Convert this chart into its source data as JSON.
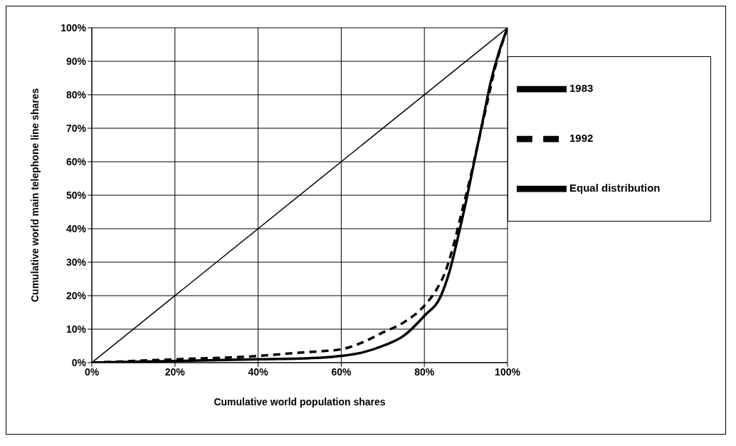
{
  "chart_data": {
    "type": "line",
    "xlabel": "Cumulative world population shares",
    "ylabel": "Cumulative world main telephone line shares",
    "xlim": [
      0,
      100
    ],
    "ylim": [
      0,
      100
    ],
    "xticks": [
      {
        "value": 0,
        "label": "0%"
      },
      {
        "value": 20,
        "label": "20%"
      },
      {
        "value": 40,
        "label": "40%"
      },
      {
        "value": 60,
        "label": "60%"
      },
      {
        "value": 80,
        "label": "80%"
      },
      {
        "value": 100,
        "label": "100%"
      }
    ],
    "yticks": [
      {
        "value": 0,
        "label": "0%"
      },
      {
        "value": 10,
        "label": "10%"
      },
      {
        "value": 20,
        "label": "20%"
      },
      {
        "value": 30,
        "label": "30%"
      },
      {
        "value": 40,
        "label": "40%"
      },
      {
        "value": 50,
        "label": "50%"
      },
      {
        "value": 60,
        "label": "60%"
      },
      {
        "value": 70,
        "label": "70%"
      },
      {
        "value": 80,
        "label": "80%"
      },
      {
        "value": 90,
        "label": "90%"
      },
      {
        "value": 100,
        "label": "100%"
      }
    ],
    "grid": true,
    "legend": "right",
    "marker": "none",
    "series": [
      {
        "name": "1983",
        "color": "#000000",
        "line_style": "solid",
        "x": [
          0,
          20,
          40,
          50,
          60,
          65,
          70,
          75,
          80,
          84,
          86,
          88,
          90,
          92,
          94,
          96,
          98,
          100
        ],
        "values": [
          0,
          0.5,
          1,
          1.2,
          2,
          3,
          5,
          8,
          14,
          20,
          27,
          37,
          48,
          60,
          72,
          84,
          93,
          100
        ]
      },
      {
        "name": "1992",
        "color": "#000000",
        "line_style": "dashed",
        "x": [
          0,
          20,
          40,
          50,
          60,
          65,
          70,
          75,
          80,
          83,
          85,
          87,
          89,
          91,
          93,
          95,
          97,
          100
        ],
        "values": [
          0,
          1,
          2,
          3,
          4,
          6,
          9,
          12,
          17,
          22,
          27,
          35,
          45,
          55,
          66,
          77,
          88,
          100
        ]
      },
      {
        "name": "Equal distribution",
        "color": "#000000",
        "line_style": "solid",
        "x": [
          0,
          100
        ],
        "values": [
          0,
          100
        ]
      }
    ]
  }
}
